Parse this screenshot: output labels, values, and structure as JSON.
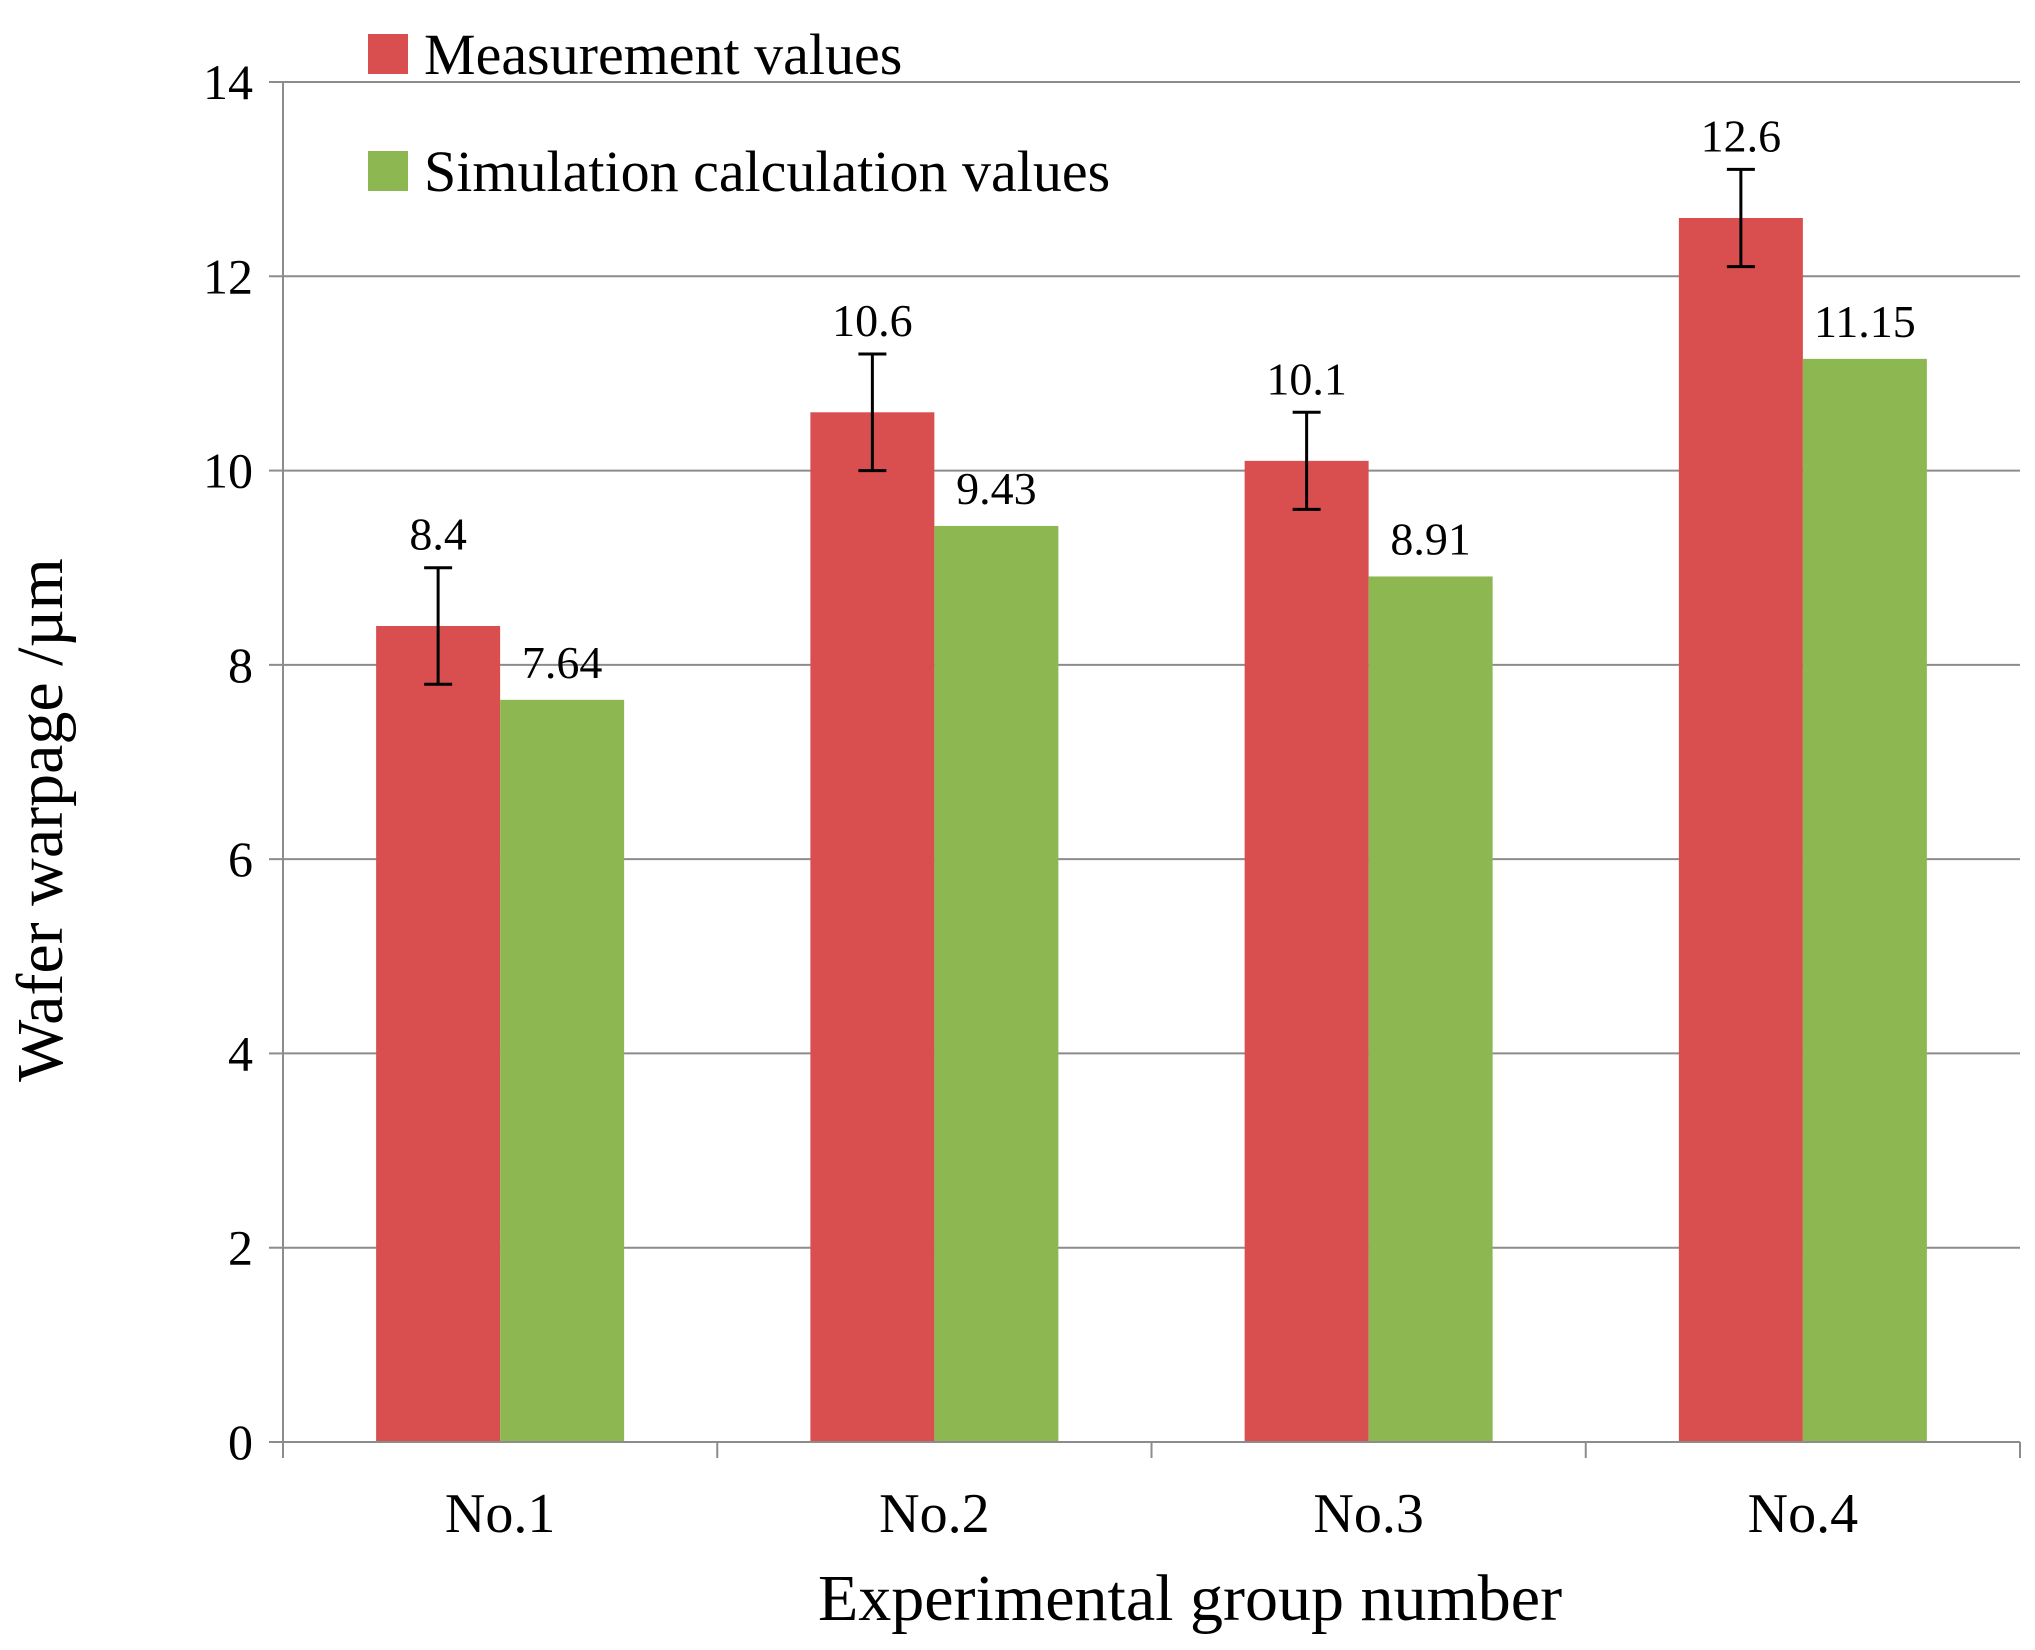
{
  "chart_data": {
    "type": "bar",
    "title": "",
    "xlabel": "Experimental group number",
    "ylabel": "Wafer warpage /µm",
    "ylim": [
      0,
      14
    ],
    "yticks": [
      0,
      2,
      4,
      6,
      8,
      10,
      12,
      14
    ],
    "ytick_labels": [
      "0",
      "2",
      "4",
      "6",
      "8",
      "10",
      "12",
      "14"
    ],
    "grid": true,
    "legend_position": "top-left",
    "categories": [
      "No.1",
      "No.2",
      "No.3",
      "No.4"
    ],
    "series": [
      {
        "name": "Measurement values",
        "color": "#d94f4f",
        "values": [
          8.4,
          10.6,
          10.1,
          12.6
        ],
        "labels": [
          "8.4",
          "10.6",
          "10.1",
          "12.6"
        ],
        "error": [
          0.6,
          0.6,
          0.5,
          0.5
        ]
      },
      {
        "name": "Simulation calculation values",
        "color": "#8db851",
        "values": [
          7.64,
          9.43,
          8.91,
          11.15
        ],
        "labels": [
          "7.64",
          "9.43",
          "8.91",
          "11.15"
        ]
      }
    ]
  }
}
